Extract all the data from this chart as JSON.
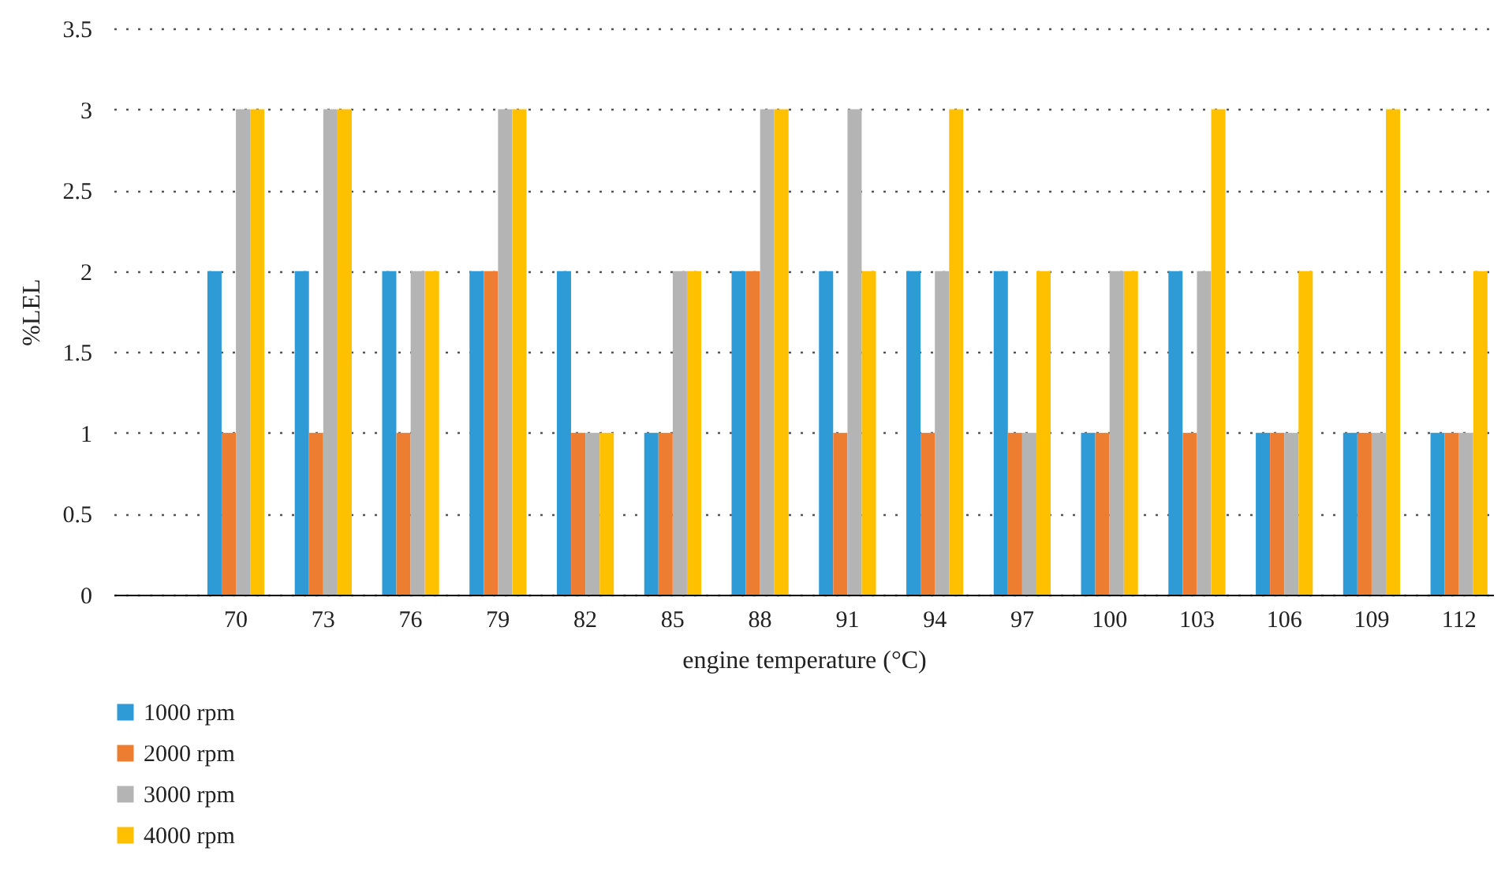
{
  "chart_data": {
    "type": "bar",
    "xlabel": "engine temperature (°C)",
    "ylabel": "%LEL",
    "categories": [
      null,
      "70",
      "73",
      "76",
      "79",
      "82",
      "85",
      "88",
      "91",
      "94",
      "97",
      "100",
      "103",
      "106",
      "109",
      "112"
    ],
    "series": [
      {
        "name": "1000 rpm",
        "color": "#2e9bd6",
        "values": [
          null,
          2,
          2,
          2,
          2,
          2,
          1,
          2,
          2,
          2,
          2,
          1,
          2,
          1,
          1,
          1
        ]
      },
      {
        "name": "2000 rpm",
        "color": "#ed7d31",
        "values": [
          null,
          1,
          1,
          1,
          2,
          1,
          1,
          2,
          1,
          1,
          1,
          1,
          1,
          1,
          1,
          1
        ]
      },
      {
        "name": "3000 rpm",
        "color": "#b4b4b4",
        "values": [
          null,
          3,
          3,
          2,
          3,
          1,
          2,
          3,
          3,
          2,
          1,
          2,
          2,
          1,
          1,
          1
        ]
      },
      {
        "name": "4000 rpm",
        "color": "#ffc000",
        "values": [
          null,
          3,
          3,
          2,
          3,
          1,
          2,
          3,
          2,
          3,
          2,
          2,
          3,
          2,
          3,
          2
        ]
      }
    ],
    "ylim": [
      0,
      3.5
    ],
    "yticks": [
      0,
      0.5,
      1,
      1.5,
      2,
      2.5,
      3,
      3.5
    ],
    "grid": "y",
    "legend": "bottom left"
  }
}
